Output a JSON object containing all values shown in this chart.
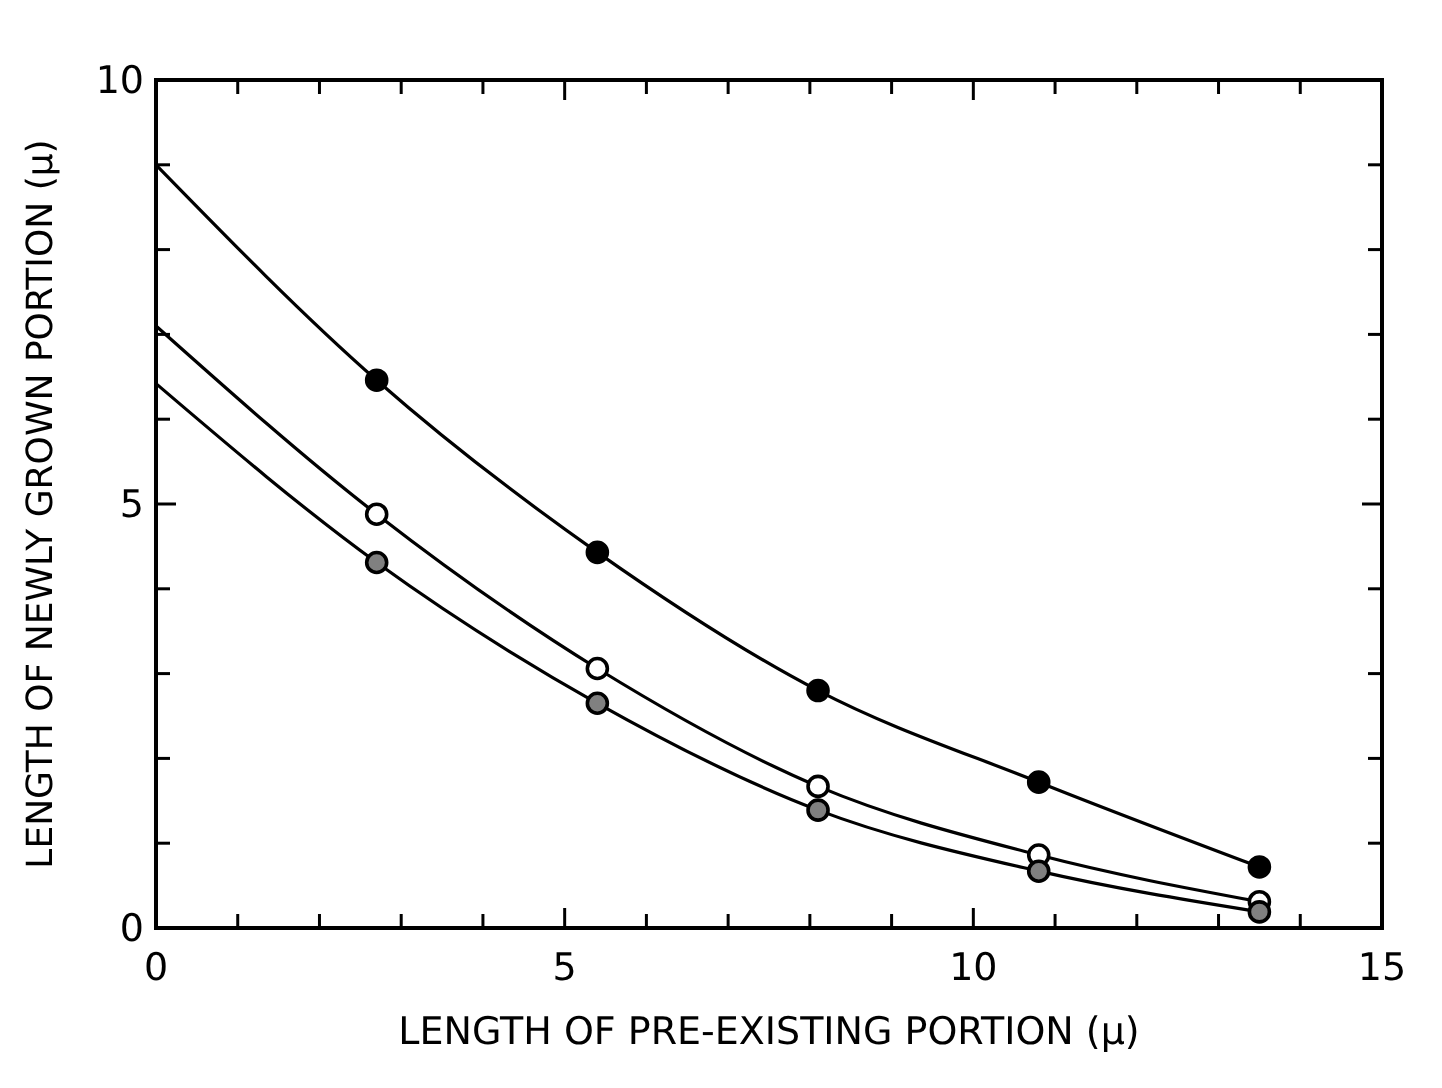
{
  "chart_data": {
    "type": "scatter",
    "xlabel": "LENGTH OF PRE-EXISTING PORTION (μ)",
    "ylabel": "LENGTH OF NEWLY GROWN PORTION (μ)",
    "xlim": [
      0,
      15
    ],
    "ylim": [
      0,
      10
    ],
    "xticks": [
      0,
      {
        "value": 1,
        "label": null
      },
      {
        "value": 2,
        "label": null
      },
      {
        "value": 3,
        "label": null
      },
      {
        "value": 4,
        "label": null
      },
      5,
      {
        "value": 6,
        "label": null
      },
      {
        "value": 7,
        "label": null
      },
      {
        "value": 8,
        "label": null
      },
      {
        "value": 9,
        "label": null
      },
      10,
      {
        "value": 11,
        "label": null
      },
      {
        "value": 12,
        "label": null
      },
      {
        "value": 13,
        "label": null
      },
      {
        "value": 14,
        "label": null
      },
      15
    ],
    "yticks": [
      0,
      {
        "value": 1,
        "label": null
      },
      {
        "value": 2,
        "label": null
      },
      {
        "value": 3,
        "label": null
      },
      {
        "value": 4,
        "label": null
      },
      5,
      {
        "value": 6,
        "label": null
      },
      {
        "value": 7,
        "label": null
      },
      {
        "value": 8,
        "label": null
      },
      {
        "value": 9,
        "label": null
      },
      10
    ],
    "grid": false,
    "marker": "circle",
    "series": [
      {
        "type": "line",
        "marker": "none",
        "color": "#000000",
        "x": [
          0,
          2.7,
          5.4,
          8.1,
          10.8,
          13.5
        ],
        "values": [
          9.0,
          6.46,
          4.43,
          2.8,
          1.72,
          0.72
        ]
      },
      {
        "type": "line",
        "marker": "none",
        "color": "#000000",
        "x": [
          0,
          2.7,
          5.4,
          8.1,
          10.8,
          13.5
        ],
        "values": [
          7.1,
          4.88,
          3.06,
          1.67,
          0.86,
          0.31
        ]
      },
      {
        "type": "line",
        "marker": "none",
        "color": "#000000",
        "x": [
          0,
          2.7,
          5.4,
          8.1,
          10.8,
          13.5
        ],
        "values": [
          6.42,
          4.31,
          2.65,
          1.39,
          0.67,
          0.19
        ]
      },
      {
        "color": "#000000",
        "x": [
          2.7,
          5.4,
          8.1,
          10.8,
          13.5
        ],
        "values": [
          6.46,
          4.43,
          2.8,
          1.72,
          0.72
        ]
      },
      {
        "color": "#ffffff",
        "x": [
          2.7,
          5.4,
          8.1,
          10.8,
          13.5
        ],
        "values": [
          4.88,
          3.06,
          1.67,
          0.86,
          0.31
        ]
      },
      {
        "color": "#808080",
        "x": [
          2.7,
          5.4,
          8.1,
          10.8,
          13.5
        ],
        "values": [
          4.31,
          2.65,
          1.39,
          0.67,
          0.19
        ]
      }
    ]
  }
}
